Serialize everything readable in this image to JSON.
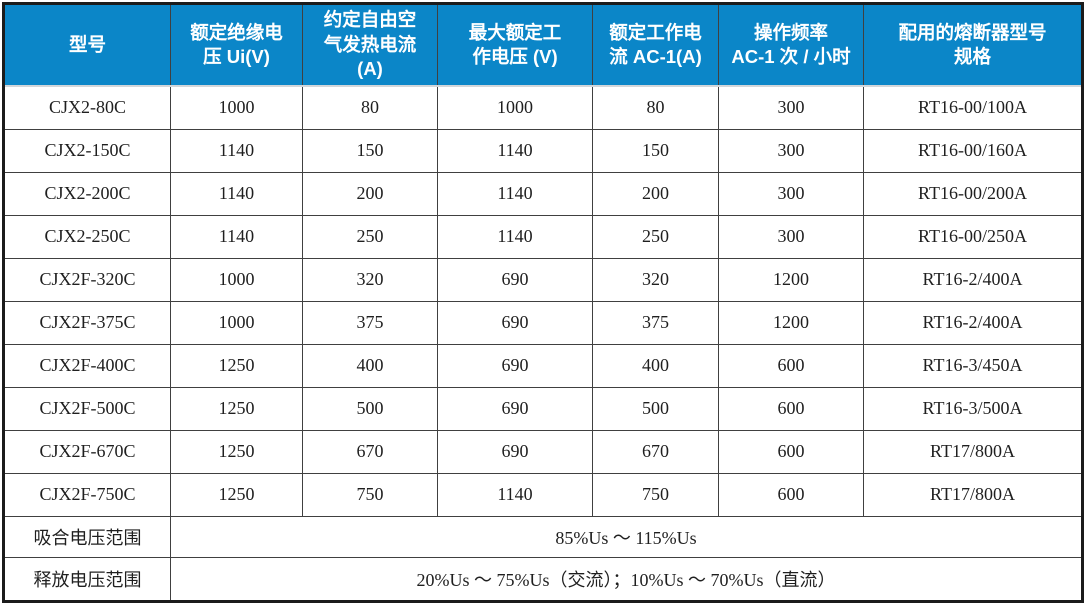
{
  "table": {
    "columns": [
      {
        "label": "型号"
      },
      {
        "label": "额定绝缘电\n压 Ui(V)"
      },
      {
        "label": "约定自由空\n气发热电流\n(A)"
      },
      {
        "label": "最大额定工\n作电压 (V)"
      },
      {
        "label": "额定工作电\n流 AC-1(A)"
      },
      {
        "label": "操作频率\nAC-1 次 / 小时"
      },
      {
        "label": "配用的熔断器型号\n规格"
      }
    ],
    "rows": [
      [
        "CJX2-80C",
        "1000",
        "80",
        "1000",
        "80",
        "300",
        "RT16-00/100A"
      ],
      [
        "CJX2-150C",
        "1140",
        "150",
        "1140",
        "150",
        "300",
        "RT16-00/160A"
      ],
      [
        "CJX2-200C",
        "1140",
        "200",
        "1140",
        "200",
        "300",
        "RT16-00/200A"
      ],
      [
        "CJX2-250C",
        "1140",
        "250",
        "1140",
        "250",
        "300",
        "RT16-00/250A"
      ],
      [
        "CJX2F-320C",
        "1000",
        "320",
        "690",
        "320",
        "1200",
        "RT16-2/400A"
      ],
      [
        "CJX2F-375C",
        "1000",
        "375",
        "690",
        "375",
        "1200",
        "RT16-2/400A"
      ],
      [
        "CJX2F-400C",
        "1250",
        "400",
        "690",
        "400",
        "600",
        "RT16-3/450A"
      ],
      [
        "CJX2F-500C",
        "1250",
        "500",
        "690",
        "500",
        "600",
        "RT16-3/500A"
      ],
      [
        "CJX2F-670C",
        "1250",
        "670",
        "690",
        "670",
        "600",
        "RT17/800A"
      ],
      [
        "CJX2F-750C",
        "1250",
        "750",
        "1140",
        "750",
        "600",
        "RT17/800A"
      ]
    ],
    "footer_rows": [
      {
        "label": "吸合电压范围",
        "value": "85%Us ～ 115%Us"
      },
      {
        "label": "释放电压范围",
        "value": "20%Us ～ 75%Us（交流）；10%Us ～ 70%Us（直流）"
      }
    ],
    "colors": {
      "header_bg": "#0B86C8",
      "header_text": "#FFFFFF",
      "body_text": "#1F1F1F",
      "grid_line": "#404040",
      "outer_border": "#1B1B1B",
      "header_divider": "#D2D6DA"
    }
  }
}
